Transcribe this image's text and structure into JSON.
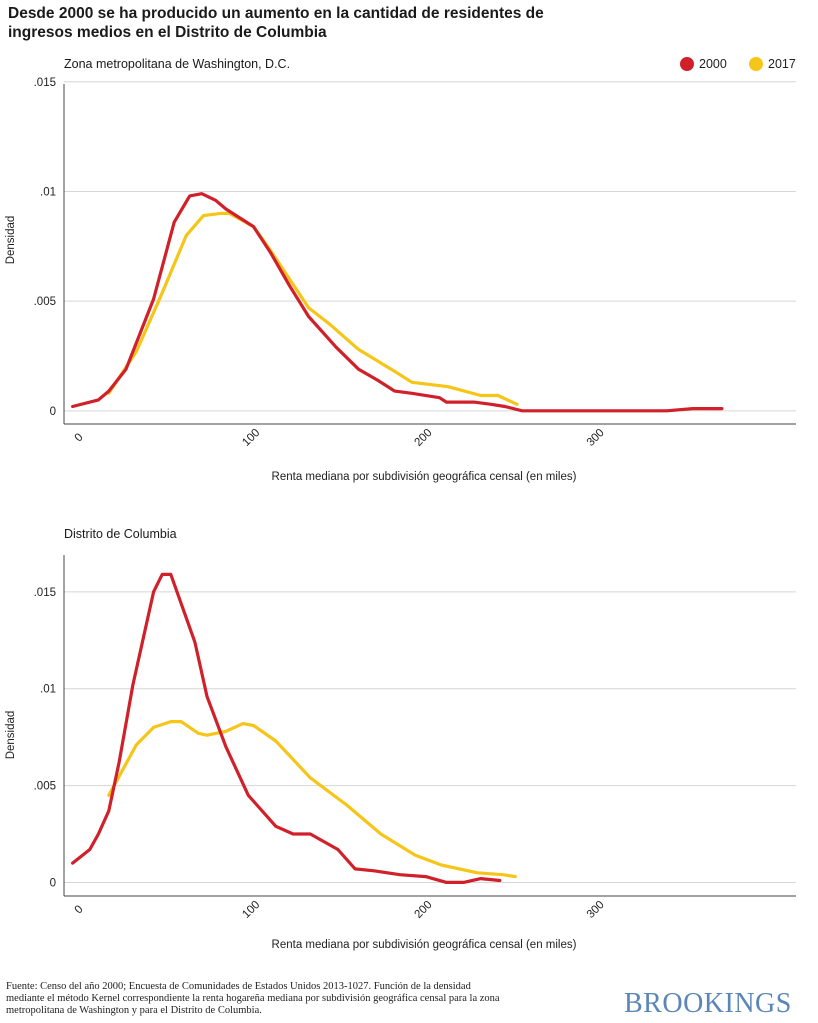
{
  "title": "Desde 2000 se ha producido un aumento en la cantidad de residentes de ingresos medios en el Distrito de Columbia",
  "legend": [
    {
      "label": "2000",
      "color": "#d0202a"
    },
    {
      "label": "2017",
      "color": "#f5c518"
    }
  ],
  "chart_data": [
    {
      "type": "line",
      "title": "Zona metropolitana de Washington, D.C.",
      "xlabel": "Renta mediana por subdivisión geográfica censal (en miles)",
      "ylabel": "Densidad",
      "xlim": [
        -10,
        415
      ],
      "ylim": [
        -0.0006,
        0.0149
      ],
      "x_ticks": [
        0,
        100,
        200,
        300
      ],
      "x_tick_labels": [
        "0",
        "100",
        "200",
        "300"
      ],
      "y_ticks": [
        0,
        0.005,
        0.01,
        0.015
      ],
      "y_tick_labels": [
        "0",
        ".005",
        ".01",
        ".015"
      ],
      "grid": true,
      "legend_position": "top-right",
      "series": [
        {
          "name": "2000",
          "color": "#d0202a",
          "x": [
            -5,
            10,
            16,
            26,
            42,
            54,
            63,
            70,
            78,
            84,
            100,
            110,
            121,
            132,
            148,
            161,
            172,
            182,
            192,
            208,
            212,
            228,
            238,
            246,
            256,
            270,
            300,
            340,
            355,
            367,
            372
          ],
          "y": [
            0.0002,
            0.0005,
            0.0009,
            0.0019,
            0.0051,
            0.0086,
            0.0098,
            0.0099,
            0.0096,
            0.0092,
            0.0084,
            0.0072,
            0.0057,
            0.0043,
            0.0029,
            0.0019,
            0.0014,
            0.0009,
            0.0008,
            0.0006,
            0.0004,
            0.0004,
            0.0003,
            0.0002,
            0.0,
            0.0,
            0.0,
            0.0,
            0.0001,
            0.0001,
            0.0001
          ]
        },
        {
          "name": "2017",
          "color": "#f5c518",
          "x": [
            16,
            32,
            46,
            61,
            71,
            81,
            86,
            100,
            110,
            121,
            132,
            145,
            161,
            182,
            192,
            213,
            232,
            242,
            253
          ],
          "y": [
            0.0008,
            0.0027,
            0.0052,
            0.008,
            0.0089,
            0.009,
            0.009,
            0.0084,
            0.0073,
            0.006,
            0.0047,
            0.0039,
            0.0028,
            0.0018,
            0.0013,
            0.0011,
            0.0007,
            0.0007,
            0.0003
          ]
        }
      ]
    },
    {
      "type": "line",
      "title": "Distrito de Columbia",
      "xlabel": "Renta mediana por subdivisión geográfica censal (en miles)",
      "ylabel": "Densidad",
      "xlim": [
        -10,
        415
      ],
      "ylim": [
        -0.0007,
        0.0169
      ],
      "x_ticks": [
        0,
        100,
        200,
        300
      ],
      "x_tick_labels": [
        "0",
        "100",
        "200",
        "300"
      ],
      "y_ticks": [
        0,
        0.005,
        0.01,
        0.015
      ],
      "y_tick_labels": [
        "0",
        ".005",
        ".01",
        ".015"
      ],
      "grid": true,
      "series": [
        {
          "name": "2000",
          "color": "#d0202a",
          "x": [
            -5,
            5,
            10,
            16,
            22,
            30,
            42,
            47,
            52,
            58,
            66,
            73,
            84,
            97,
            113,
            123,
            133,
            149,
            159,
            170,
            185,
            200,
            212,
            222,
            232,
            243
          ],
          "y": [
            0.001,
            0.0017,
            0.0025,
            0.0037,
            0.0062,
            0.0102,
            0.015,
            0.0159,
            0.0159,
            0.0144,
            0.0124,
            0.0096,
            0.007,
            0.0045,
            0.0029,
            0.0025,
            0.0025,
            0.0017,
            0.0007,
            0.0006,
            0.0004,
            0.0003,
            0.0,
            0.0,
            0.0002,
            0.0001
          ]
        },
        {
          "name": "2017",
          "color": "#f5c518",
          "x": [
            16,
            32,
            42,
            52,
            58,
            68,
            73,
            84,
            94,
            100,
            113,
            133,
            154,
            174,
            194,
            209,
            230,
            245,
            252
          ],
          "y": [
            0.0045,
            0.0071,
            0.008,
            0.0083,
            0.0083,
            0.0077,
            0.0076,
            0.0078,
            0.0082,
            0.0081,
            0.0073,
            0.0054,
            0.004,
            0.0025,
            0.0014,
            0.0009,
            0.0005,
            0.0004,
            0.0003
          ]
        }
      ]
    }
  ],
  "footnote": "Fuente: Censo del año 2000; Encuesta de Comunidades de Estados Unidos 2013-1027. Función de la densidad mediante el método Kernel correspondiente la renta hogareña mediana por subdivisión geográfica censal para la zona metropolitana de Washington y para el Distrito de Columbia.",
  "brand": "BROOKINGS"
}
